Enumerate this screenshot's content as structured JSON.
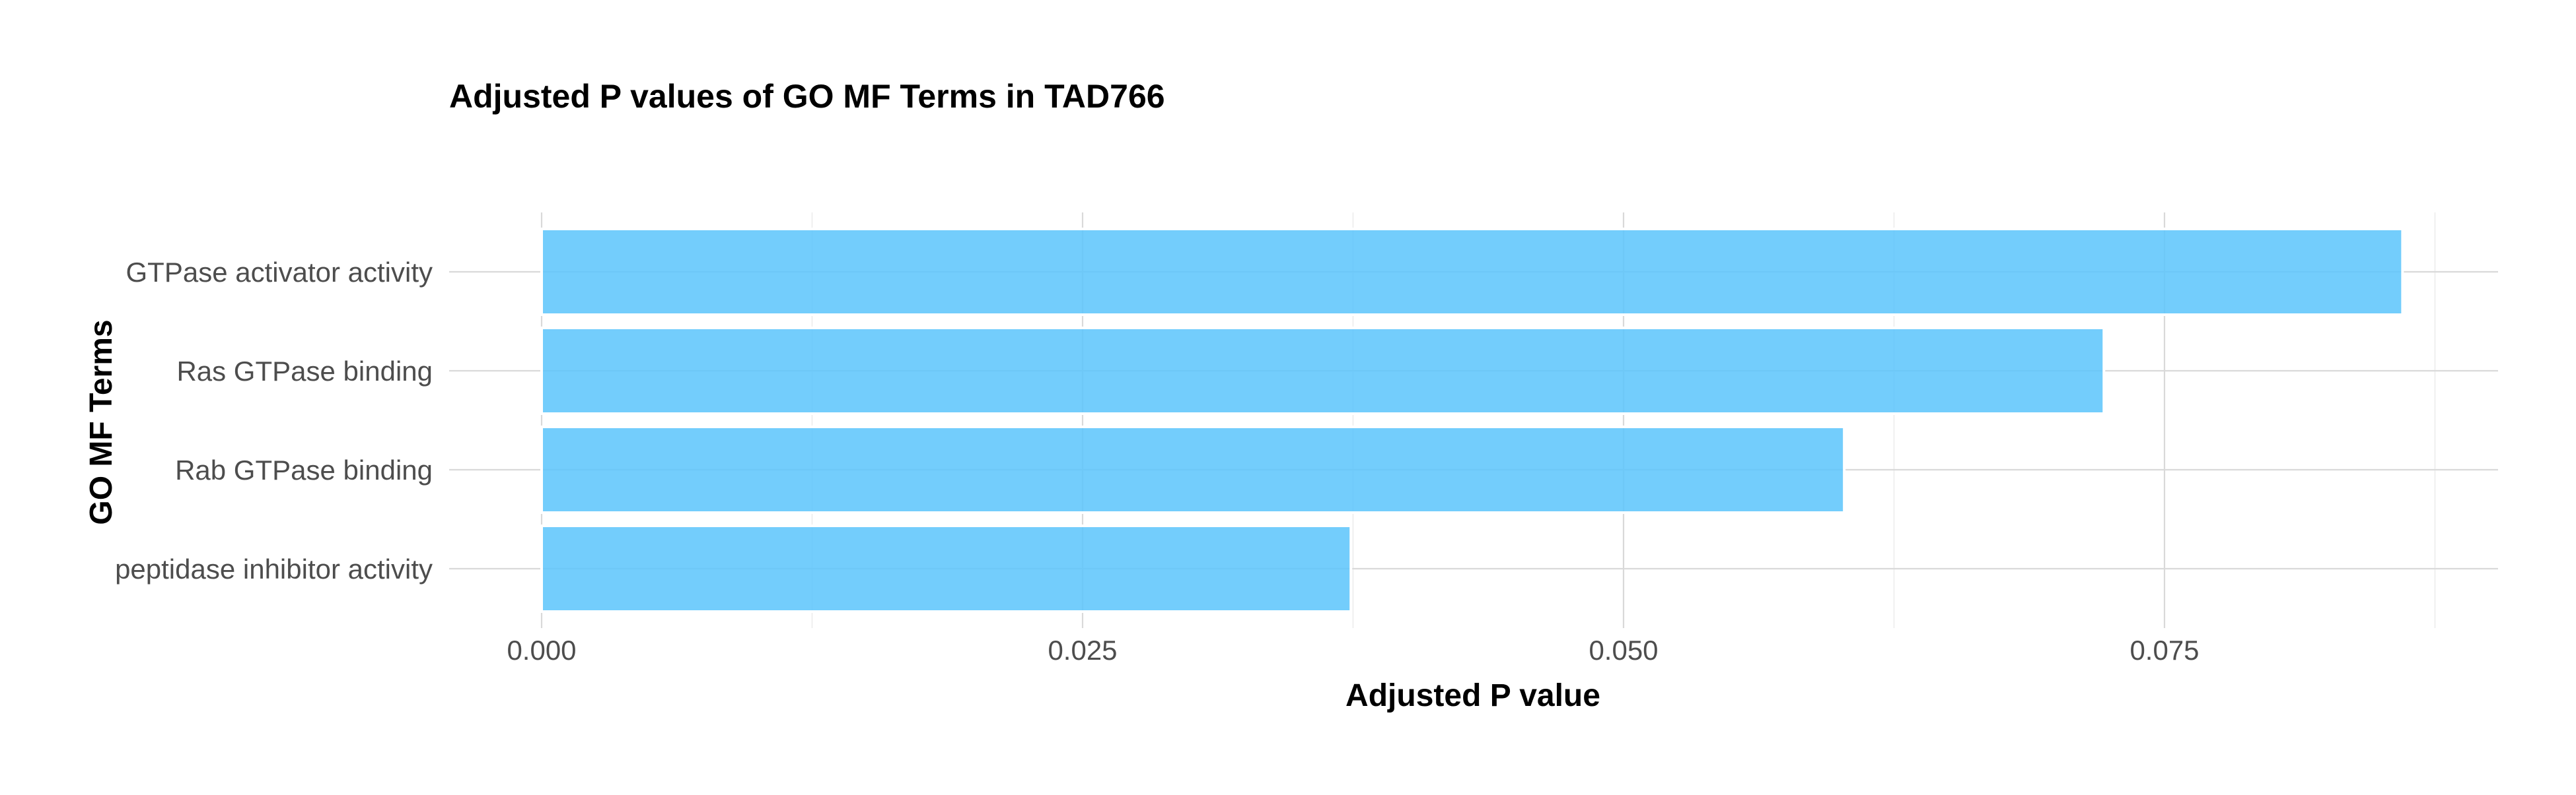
{
  "chart_data": {
    "type": "bar",
    "orientation": "horizontal",
    "title": "Adjusted P values of GO MF Terms in TAD766",
    "xlabel": "Adjusted P value",
    "ylabel": "GO MF Terms",
    "categories": [
      "GTPase activator activity",
      "Ras GTPase binding",
      "Rab GTPase binding",
      "peptidase inhibitor activity"
    ],
    "values": [
      0.086,
      0.0722,
      0.0602,
      0.0374
    ],
    "xticks": [
      0.0,
      0.025,
      0.05,
      0.075
    ],
    "xtick_labels": [
      "0.000",
      "0.025",
      "0.050",
      "0.075"
    ],
    "xlim": [
      -0.0043,
      0.0903
    ],
    "grid": true,
    "bar_color": "#5BC4FB",
    "bar_opacity": 0.85,
    "bar_outline_color": "#ffffff"
  }
}
